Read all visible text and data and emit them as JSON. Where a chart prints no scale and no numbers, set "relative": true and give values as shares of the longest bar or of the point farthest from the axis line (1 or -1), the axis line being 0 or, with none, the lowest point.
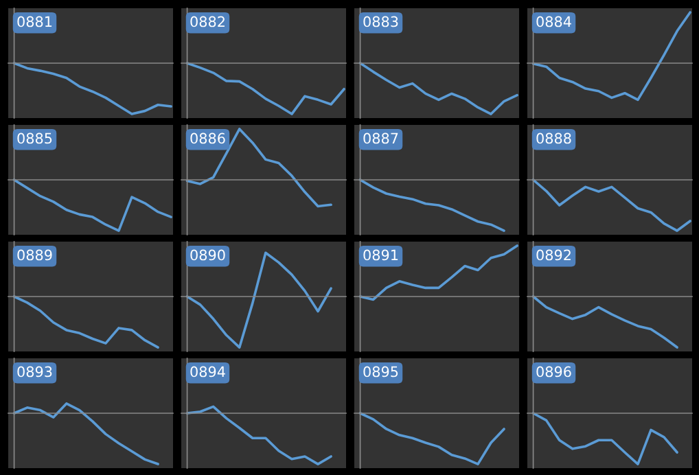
{
  "chart_data": [
    {
      "type": "line",
      "title": "0881",
      "relative": true,
      "categories": [
        null,
        null,
        null,
        null,
        null,
        null,
        null,
        null,
        null,
        null,
        null,
        null,
        null
      ],
      "series": [
        {
          "color": "#5b9bd5",
          "values": [
            0,
            -0.1,
            -0.15,
            -0.21,
            -0.29,
            -0.46,
            -0.56,
            -0.68,
            -0.84,
            -1,
            -0.94,
            -0.82,
            -0.85
          ]
        }
      ]
    },
    {
      "type": "line",
      "title": "0882",
      "relative": true,
      "categories": [
        null,
        null,
        null,
        null,
        null,
        null,
        null,
        null,
        null,
        null,
        null,
        null,
        null
      ],
      "series": [
        {
          "color": "#5b9bd5",
          "values": [
            0,
            -0.09,
            -0.19,
            -0.35,
            -0.36,
            -0.51,
            -0.7,
            -0.84,
            -1,
            -0.65,
            -0.72,
            -0.81,
            -0.51
          ]
        }
      ]
    },
    {
      "type": "line",
      "title": "0883",
      "relative": true,
      "categories": [
        null,
        null,
        null,
        null,
        null,
        null,
        null,
        null,
        null,
        null,
        null,
        null,
        null
      ],
      "series": [
        {
          "color": "#5b9bd5",
          "values": [
            0,
            -0.17,
            -0.33,
            -0.48,
            -0.4,
            -0.6,
            -0.72,
            -0.6,
            -0.7,
            -0.87,
            -1,
            -0.75,
            -0.63
          ]
        }
      ]
    },
    {
      "type": "line",
      "title": "0884",
      "relative": true,
      "categories": [
        null,
        null,
        null,
        null,
        null,
        null,
        null,
        null,
        null,
        null,
        null,
        null,
        null
      ],
      "series": [
        {
          "color": "#5b9bd5",
          "values": [
            -0.01,
            -0.07,
            -0.29,
            -0.37,
            -0.5,
            -0.55,
            -0.68,
            -0.59,
            -0.72,
            -0.29,
            0.16,
            0.63,
            1
          ]
        }
      ]
    },
    {
      "type": "line",
      "title": "0885",
      "relative": true,
      "categories": [
        null,
        null,
        null,
        null,
        null,
        null,
        null,
        null,
        null,
        null,
        null,
        null,
        null
      ],
      "series": [
        {
          "color": "#5b9bd5",
          "values": [
            0,
            -0.16,
            -0.32,
            -0.43,
            -0.59,
            -0.68,
            -0.73,
            -0.88,
            -1,
            -0.34,
            -0.46,
            -0.63,
            -0.73
          ]
        }
      ]
    },
    {
      "type": "line",
      "title": "0886",
      "relative": true,
      "categories": [
        null,
        null,
        null,
        null,
        null,
        null,
        null,
        null,
        null,
        null,
        null,
        null,
        null
      ],
      "series": [
        {
          "color": "#5b9bd5",
          "values": [
            -0.02,
            -0.08,
            0.05,
            0.52,
            1,
            0.73,
            0.4,
            0.33,
            0.08,
            -0.24,
            -0.52,
            -0.49,
            null
          ]
        }
      ]
    },
    {
      "type": "line",
      "title": "0887",
      "relative": true,
      "categories": [
        null,
        null,
        null,
        null,
        null,
        null,
        null,
        null,
        null,
        null,
        null,
        null,
        null
      ],
      "series": [
        {
          "color": "#5b9bd5",
          "values": [
            0,
            -0.15,
            -0.27,
            -0.33,
            -0.38,
            -0.47,
            -0.5,
            -0.58,
            -0.7,
            -0.82,
            -0.88,
            -1,
            null
          ]
        }
      ]
    },
    {
      "type": "line",
      "title": "0888",
      "relative": true,
      "categories": [
        null,
        null,
        null,
        null,
        null,
        null,
        null,
        null,
        null,
        null,
        null,
        null,
        null
      ],
      "series": [
        {
          "color": "#5b9bd5",
          "values": [
            0,
            -0.22,
            -0.5,
            -0.31,
            -0.14,
            -0.23,
            -0.14,
            -0.35,
            -0.56,
            -0.64,
            -0.86,
            -1,
            -0.81
          ]
        }
      ]
    },
    {
      "type": "line",
      "title": "0889",
      "relative": true,
      "categories": [
        null,
        null,
        null,
        null,
        null,
        null,
        null,
        null,
        null,
        null,
        null,
        null,
        null
      ],
      "series": [
        {
          "color": "#5b9bd5",
          "values": [
            0,
            -0.12,
            -0.28,
            -0.51,
            -0.66,
            -0.72,
            -0.83,
            -0.92,
            -0.62,
            -0.66,
            -0.86,
            -1,
            null
          ]
        }
      ]
    },
    {
      "type": "line",
      "title": "0890",
      "relative": true,
      "categories": [
        null,
        null,
        null,
        null,
        null,
        null,
        null,
        null,
        null,
        null,
        null,
        null,
        null
      ],
      "series": [
        {
          "color": "#5b9bd5",
          "values": [
            0,
            -0.16,
            -0.44,
            -0.76,
            -1,
            -0.13,
            0.86,
            0.67,
            0.43,
            0.11,
            -0.29,
            0.16,
            null
          ]
        }
      ]
    },
    {
      "type": "line",
      "title": "0891",
      "relative": true,
      "categories": [
        null,
        null,
        null,
        null,
        null,
        null,
        null,
        null,
        null,
        null,
        null,
        null,
        null
      ],
      "series": [
        {
          "color": "#5b9bd5",
          "values": [
            0,
            -0.06,
            0.17,
            0.3,
            0.23,
            0.17,
            0.17,
            0.38,
            0.6,
            0.52,
            0.76,
            0.83,
            1
          ]
        }
      ]
    },
    {
      "type": "line",
      "title": "0892",
      "relative": true,
      "categories": [
        null,
        null,
        null,
        null,
        null,
        null,
        null,
        null,
        null,
        null,
        null,
        null,
        null
      ],
      "series": [
        {
          "color": "#5b9bd5",
          "values": [
            0,
            -0.21,
            -0.33,
            -0.44,
            -0.36,
            -0.21,
            -0.35,
            -0.47,
            -0.58,
            -0.64,
            -0.81,
            -1,
            null
          ]
        }
      ]
    },
    {
      "type": "line",
      "title": "0893",
      "relative": true,
      "categories": [
        null,
        null,
        null,
        null,
        null,
        null,
        null,
        null,
        null,
        null,
        null,
        null,
        null
      ],
      "series": [
        {
          "color": "#5b9bd5",
          "values": [
            0,
            0.11,
            0.06,
            -0.08,
            0.19,
            0.06,
            -0.16,
            -0.41,
            -0.59,
            -0.75,
            -0.91,
            -1,
            null
          ]
        }
      ]
    },
    {
      "type": "line",
      "title": "0894",
      "relative": true,
      "categories": [
        null,
        null,
        null,
        null,
        null,
        null,
        null,
        null,
        null,
        null,
        null,
        null,
        null
      ],
      "series": [
        {
          "color": "#5b9bd5",
          "values": [
            0,
            0.03,
            0.13,
            -0.1,
            -0.29,
            -0.49,
            -0.49,
            -0.74,
            -0.9,
            -0.85,
            -1,
            -0.85,
            null
          ]
        }
      ]
    },
    {
      "type": "line",
      "title": "0895",
      "relative": true,
      "categories": [
        null,
        null,
        null,
        null,
        null,
        null,
        null,
        null,
        null,
        null,
        null,
        null,
        null
      ],
      "series": [
        {
          "color": "#5b9bd5",
          "values": [
            0,
            -0.12,
            -0.31,
            -0.43,
            -0.49,
            -0.58,
            -0.66,
            -0.82,
            -0.89,
            -1,
            -0.58,
            -0.31,
            null
          ]
        }
      ]
    },
    {
      "type": "line",
      "title": "0896",
      "relative": true,
      "categories": [
        null,
        null,
        null,
        null,
        null,
        null,
        null,
        null,
        null,
        null,
        null,
        null,
        null
      ],
      "series": [
        {
          "color": "#5b9bd5",
          "values": [
            0,
            -0.14,
            -0.53,
            -0.7,
            -0.65,
            -0.53,
            -0.53,
            -0.77,
            -1,
            -0.33,
            -0.47,
            -0.77,
            null
          ]
        }
      ]
    }
  ]
}
